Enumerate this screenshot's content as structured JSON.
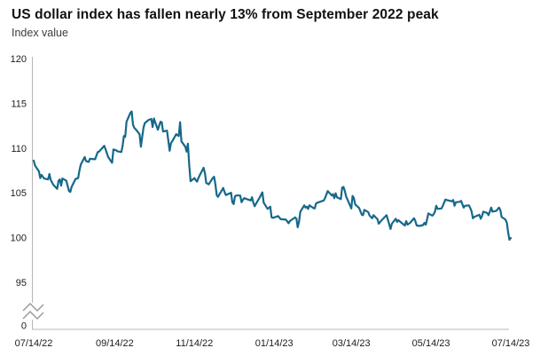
{
  "header": {
    "title": "US dollar index has fallen nearly 13% from September 2022 peak",
    "subtitle": "Index value"
  },
  "colors": {
    "line": "#16688a",
    "axis": "#b5b5b5",
    "axis_break": "#9b9b9b",
    "tick_label": "#1c1c1c",
    "title": "#111111",
    "subtitle": "#3c3c3c",
    "background": "#ffffff"
  },
  "chart_data": {
    "type": "line",
    "title": "US dollar index has fallen nearly 13% from September 2022 peak",
    "ylabel": "Index value",
    "xlabel": "",
    "grid": false,
    "legend": "none",
    "y_axis": {
      "tick_labels": [
        "120",
        "115",
        "110",
        "105",
        "100",
        "95"
      ],
      "zero_label": "0",
      "axis_break": true,
      "display_range": [
        95,
        120
      ]
    },
    "x_axis": {
      "tick_labels": [
        "07/14/22",
        "09/14/22",
        "11/14/22",
        "01/14/23",
        "03/14/23",
        "05/14/23",
        "07/14/23"
      ]
    },
    "series": [
      {
        "name": "US dollar index",
        "points": [
          [
            "2022-07-14",
            108.6
          ],
          [
            "2022-07-15",
            108.05
          ],
          [
            "2022-07-18",
            107.4
          ],
          [
            "2022-07-19",
            106.65
          ],
          [
            "2022-07-20",
            107.0
          ],
          [
            "2022-07-22",
            106.6
          ],
          [
            "2022-07-25",
            106.5
          ],
          [
            "2022-07-26",
            107.1
          ],
          [
            "2022-07-27",
            106.45
          ],
          [
            "2022-07-29",
            105.9
          ],
          [
            "2022-08-01",
            105.45
          ],
          [
            "2022-08-02",
            106.35
          ],
          [
            "2022-08-03",
            106.5
          ],
          [
            "2022-08-04",
            105.8
          ],
          [
            "2022-08-05",
            106.6
          ],
          [
            "2022-08-08",
            106.35
          ],
          [
            "2022-08-10",
            105.2
          ],
          [
            "2022-08-11",
            105.1
          ],
          [
            "2022-08-12",
            105.65
          ],
          [
            "2022-08-15",
            106.55
          ],
          [
            "2022-08-17",
            106.65
          ],
          [
            "2022-08-18",
            107.5
          ],
          [
            "2022-08-19",
            108.15
          ],
          [
            "2022-08-22",
            109.0
          ],
          [
            "2022-08-23",
            108.55
          ],
          [
            "2022-08-25",
            108.45
          ],
          [
            "2022-08-26",
            108.8
          ],
          [
            "2022-08-30",
            108.75
          ],
          [
            "2022-09-01",
            109.55
          ],
          [
            "2022-09-02",
            109.6
          ],
          [
            "2022-09-06",
            110.25
          ],
          [
            "2022-09-07",
            109.85
          ],
          [
            "2022-09-09",
            109.0
          ],
          [
            "2022-09-12",
            108.35
          ],
          [
            "2022-09-13",
            109.85
          ],
          [
            "2022-09-15",
            109.75
          ],
          [
            "2022-09-16",
            109.65
          ],
          [
            "2022-09-19",
            109.55
          ],
          [
            "2022-09-20",
            110.2
          ],
          [
            "2022-09-21",
            111.35
          ],
          [
            "2022-09-22",
            111.25
          ],
          [
            "2022-09-23",
            112.95
          ],
          [
            "2022-09-26",
            113.95
          ],
          [
            "2022-09-27",
            114.1
          ],
          [
            "2022-09-28",
            112.6
          ],
          [
            "2022-09-29",
            112.25
          ],
          [
            "2022-09-30",
            112.1
          ],
          [
            "2022-10-03",
            111.55
          ],
          [
            "2022-10-04",
            110.15
          ],
          [
            "2022-10-05",
            111.2
          ],
          [
            "2022-10-06",
            112.25
          ],
          [
            "2022-10-07",
            112.8
          ],
          [
            "2022-10-10",
            113.15
          ],
          [
            "2022-10-12",
            113.25
          ],
          [
            "2022-10-13",
            112.35
          ],
          [
            "2022-10-14",
            113.3
          ],
          [
            "2022-10-17",
            112.05
          ],
          [
            "2022-10-19",
            112.95
          ],
          [
            "2022-10-20",
            112.9
          ],
          [
            "2022-10-21",
            111.85
          ],
          [
            "2022-10-24",
            111.95
          ],
          [
            "2022-10-25",
            110.85
          ],
          [
            "2022-10-26",
            109.7
          ],
          [
            "2022-10-27",
            110.55
          ],
          [
            "2022-10-28",
            110.75
          ],
          [
            "2022-10-31",
            111.55
          ],
          [
            "2022-11-01",
            111.45
          ],
          [
            "2022-11-02",
            111.35
          ],
          [
            "2022-11-03",
            112.9
          ],
          [
            "2022-11-04",
            110.75
          ],
          [
            "2022-11-07",
            110.15
          ],
          [
            "2022-11-08",
            109.6
          ],
          [
            "2022-11-09",
            110.5
          ],
          [
            "2022-11-10",
            108.1
          ],
          [
            "2022-11-11",
            106.3
          ],
          [
            "2022-11-14",
            106.65
          ],
          [
            "2022-11-15",
            106.4
          ],
          [
            "2022-11-16",
            106.25
          ],
          [
            "2022-11-17",
            106.65
          ],
          [
            "2022-11-18",
            106.95
          ],
          [
            "2022-11-21",
            107.8
          ],
          [
            "2022-11-22",
            107.2
          ],
          [
            "2022-11-23",
            106.1
          ],
          [
            "2022-11-25",
            105.95
          ],
          [
            "2022-11-28",
            106.65
          ],
          [
            "2022-11-29",
            106.8
          ],
          [
            "2022-11-30",
            105.95
          ],
          [
            "2022-12-01",
            104.75
          ],
          [
            "2022-12-02",
            104.55
          ],
          [
            "2022-12-05",
            105.3
          ],
          [
            "2022-12-06",
            105.55
          ],
          [
            "2022-12-07",
            105.1
          ],
          [
            "2022-12-08",
            104.75
          ],
          [
            "2022-12-12",
            105.0
          ],
          [
            "2022-12-13",
            103.95
          ],
          [
            "2022-12-14",
            103.75
          ],
          [
            "2022-12-15",
            104.6
          ],
          [
            "2022-12-16",
            104.7
          ],
          [
            "2022-12-19",
            104.7
          ],
          [
            "2022-12-20",
            103.95
          ],
          [
            "2022-12-21",
            104.2
          ],
          [
            "2022-12-22",
            104.4
          ],
          [
            "2022-12-27",
            104.15
          ],
          [
            "2022-12-28",
            104.5
          ],
          [
            "2022-12-29",
            103.95
          ],
          [
            "2022-12-30",
            103.5
          ],
          [
            "2023-01-03",
            104.5
          ],
          [
            "2023-01-05",
            105.05
          ],
          [
            "2023-01-06",
            103.9
          ],
          [
            "2023-01-09",
            103.2
          ],
          [
            "2023-01-11",
            103.45
          ],
          [
            "2023-01-12",
            102.25
          ],
          [
            "2023-01-13",
            102.2
          ],
          [
            "2023-01-17",
            102.4
          ],
          [
            "2023-01-19",
            102.05
          ],
          [
            "2023-01-23",
            102.0
          ],
          [
            "2023-01-25",
            101.6
          ],
          [
            "2023-01-26",
            101.85
          ],
          [
            "2023-01-30",
            102.25
          ],
          [
            "2023-01-31",
            102.1
          ],
          [
            "2023-02-01",
            101.15
          ],
          [
            "2023-02-02",
            101.75
          ],
          [
            "2023-02-03",
            102.9
          ],
          [
            "2023-02-06",
            103.6
          ],
          [
            "2023-02-07",
            103.35
          ],
          [
            "2023-02-08",
            103.45
          ],
          [
            "2023-02-09",
            103.2
          ],
          [
            "2023-02-10",
            103.6
          ],
          [
            "2023-02-13",
            103.3
          ],
          [
            "2023-02-14",
            103.25
          ],
          [
            "2023-02-15",
            103.8
          ],
          [
            "2023-02-16",
            103.9
          ],
          [
            "2023-02-21",
            104.15
          ],
          [
            "2023-02-22",
            104.45
          ],
          [
            "2023-02-24",
            105.2
          ],
          [
            "2023-02-27",
            104.7
          ],
          [
            "2023-02-28",
            104.85
          ],
          [
            "2023-03-01",
            104.4
          ],
          [
            "2023-03-02",
            104.95
          ],
          [
            "2023-03-03",
            104.5
          ],
          [
            "2023-03-06",
            104.3
          ],
          [
            "2023-03-07",
            105.6
          ],
          [
            "2023-03-08",
            105.65
          ],
          [
            "2023-03-09",
            105.25
          ],
          [
            "2023-03-10",
            104.6
          ],
          [
            "2023-03-13",
            103.6
          ],
          [
            "2023-03-14",
            103.25
          ],
          [
            "2023-03-15",
            104.65
          ],
          [
            "2023-03-16",
            104.4
          ],
          [
            "2023-03-17",
            103.7
          ],
          [
            "2023-03-20",
            103.3
          ],
          [
            "2023-03-22",
            102.55
          ],
          [
            "2023-03-23",
            102.5
          ],
          [
            "2023-03-24",
            103.1
          ],
          [
            "2023-03-27",
            102.85
          ],
          [
            "2023-03-28",
            102.45
          ],
          [
            "2023-03-30",
            102.15
          ],
          [
            "2023-03-31",
            102.5
          ],
          [
            "2023-04-03",
            102.05
          ],
          [
            "2023-04-04",
            101.55
          ],
          [
            "2023-04-06",
            101.9
          ],
          [
            "2023-04-10",
            102.5
          ],
          [
            "2023-04-12",
            101.5
          ],
          [
            "2023-04-13",
            100.95
          ],
          [
            "2023-04-14",
            101.55
          ],
          [
            "2023-04-17",
            102.1
          ],
          [
            "2023-04-18",
            101.75
          ],
          [
            "2023-04-19",
            101.95
          ],
          [
            "2023-04-21",
            101.7
          ],
          [
            "2023-04-24",
            101.35
          ],
          [
            "2023-04-25",
            101.85
          ],
          [
            "2023-04-26",
            101.45
          ],
          [
            "2023-04-28",
            101.65
          ],
          [
            "2023-05-01",
            102.15
          ],
          [
            "2023-05-02",
            101.85
          ],
          [
            "2023-05-03",
            101.35
          ],
          [
            "2023-05-05",
            101.3
          ],
          [
            "2023-05-08",
            101.4
          ],
          [
            "2023-05-09",
            101.65
          ],
          [
            "2023-05-10",
            101.45
          ],
          [
            "2023-05-11",
            102.05
          ],
          [
            "2023-05-12",
            102.7
          ],
          [
            "2023-05-15",
            102.45
          ],
          [
            "2023-05-16",
            102.6
          ],
          [
            "2023-05-17",
            102.9
          ],
          [
            "2023-05-18",
            103.55
          ],
          [
            "2023-05-19",
            103.2
          ],
          [
            "2023-05-22",
            103.25
          ],
          [
            "2023-05-23",
            103.55
          ],
          [
            "2023-05-24",
            103.9
          ],
          [
            "2023-05-25",
            104.25
          ],
          [
            "2023-05-26",
            104.2
          ],
          [
            "2023-05-30",
            104.05
          ],
          [
            "2023-05-31",
            104.2
          ],
          [
            "2023-06-01",
            103.55
          ],
          [
            "2023-06-02",
            103.95
          ],
          [
            "2023-06-05",
            104.0
          ],
          [
            "2023-06-06",
            104.1
          ],
          [
            "2023-06-08",
            103.35
          ],
          [
            "2023-06-09",
            103.55
          ],
          [
            "2023-06-12",
            103.6
          ],
          [
            "2023-06-13",
            103.3
          ],
          [
            "2023-06-14",
            102.95
          ],
          [
            "2023-06-15",
            102.15
          ],
          [
            "2023-06-16",
            102.3
          ],
          [
            "2023-06-20",
            102.55
          ],
          [
            "2023-06-21",
            102.1
          ],
          [
            "2023-06-22",
            102.4
          ],
          [
            "2023-06-23",
            102.9
          ],
          [
            "2023-06-26",
            102.75
          ],
          [
            "2023-06-27",
            102.5
          ],
          [
            "2023-06-28",
            102.9
          ],
          [
            "2023-06-29",
            103.35
          ],
          [
            "2023-06-30",
            102.9
          ],
          [
            "2023-07-03",
            103.0
          ],
          [
            "2023-07-05",
            103.35
          ],
          [
            "2023-07-06",
            103.1
          ],
          [
            "2023-07-07",
            102.3
          ],
          [
            "2023-07-10",
            102.0
          ],
          [
            "2023-07-11",
            101.65
          ],
          [
            "2023-07-12",
            100.55
          ],
          [
            "2023-07-13",
            99.75
          ],
          [
            "2023-07-14",
            99.95
          ]
        ]
      }
    ]
  }
}
